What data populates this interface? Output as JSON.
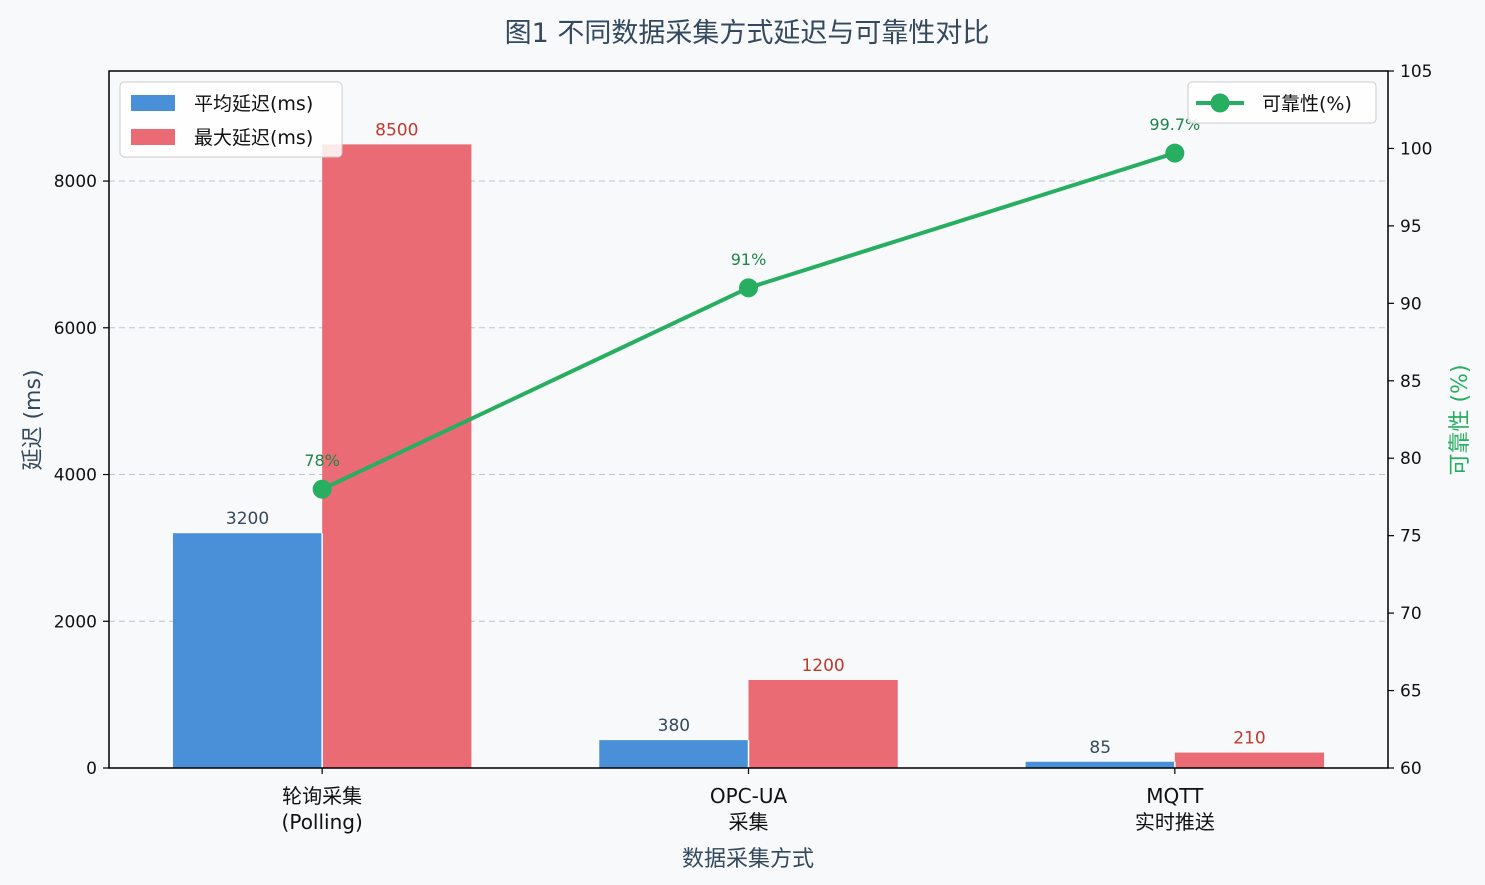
{
  "chart_data": {
    "type": "bar",
    "title": "图1  不同数据采集方式延迟与可靠性对比",
    "xlabel": "数据采集方式",
    "ylabel": "延迟 (ms)",
    "y2label": "可靠性 (%)",
    "categories": [
      [
        "轮询采集",
        "(Polling)"
      ],
      [
        "OPC-UA",
        "采集"
      ],
      [
        "MQTT",
        "实时推送"
      ]
    ],
    "ylim": [
      0,
      9500
    ],
    "yticks": [
      0,
      2000,
      4000,
      6000,
      8000
    ],
    "y2lim": [
      60,
      105
    ],
    "y2ticks": [
      60,
      65,
      70,
      75,
      80,
      85,
      90,
      95,
      100,
      105
    ],
    "grid": "y-dashed",
    "series": [
      {
        "name": "平均延迟(ms)",
        "type": "bar",
        "axis": "left",
        "color": "#4a90d9",
        "label_color": "#34495e",
        "values": [
          3200,
          380,
          85
        ]
      },
      {
        "name": "最大延迟(ms)",
        "type": "bar",
        "axis": "left",
        "color": "#eb6b75",
        "label_color": "#c0392b",
        "values": [
          8500,
          1200,
          210
        ]
      },
      {
        "name": "可靠性(%)",
        "type": "line",
        "axis": "right",
        "color": "#27ae60",
        "values": [
          78,
          91,
          99.7
        ],
        "labels": [
          "78%",
          "91%",
          "99.7%"
        ]
      }
    ],
    "legend_left": {
      "placement": "top-left",
      "items": [
        "平均延迟(ms)",
        "最大延迟(ms)"
      ]
    },
    "legend_right": {
      "placement": "top-right",
      "items": [
        "可靠性(%)"
      ]
    }
  }
}
